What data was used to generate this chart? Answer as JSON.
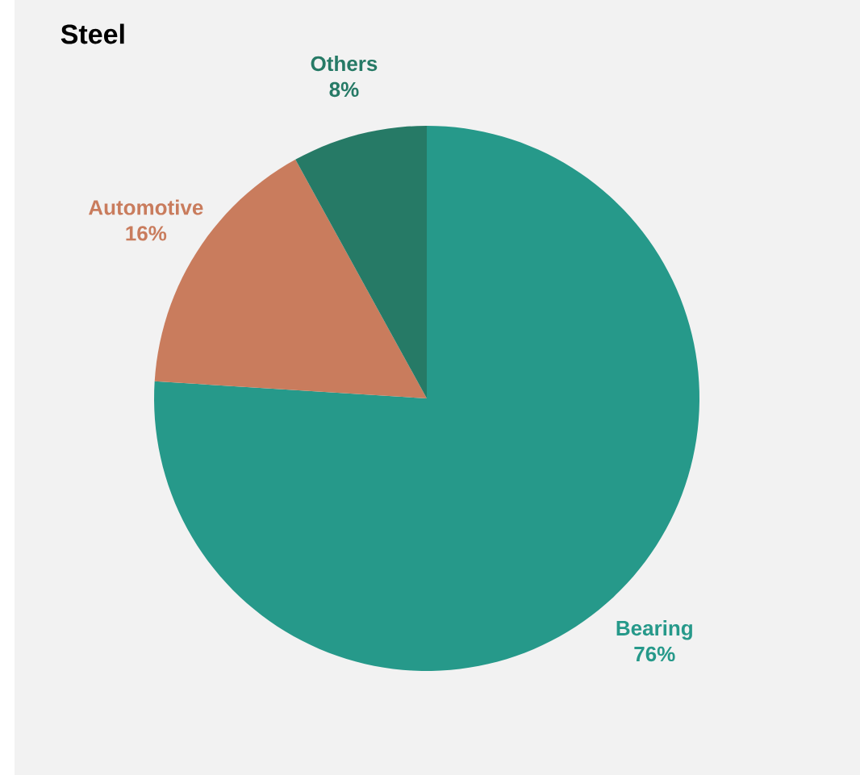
{
  "chart_data": {
    "type": "pie",
    "title": "Steel",
    "categories": [
      "Bearing",
      "Automotive",
      "Others"
    ],
    "values": [
      76,
      16,
      8
    ],
    "value_labels": [
      "76%",
      "16%",
      "8%"
    ],
    "colors": [
      "#26998a",
      "#c97c5d",
      "#267a66"
    ]
  }
}
